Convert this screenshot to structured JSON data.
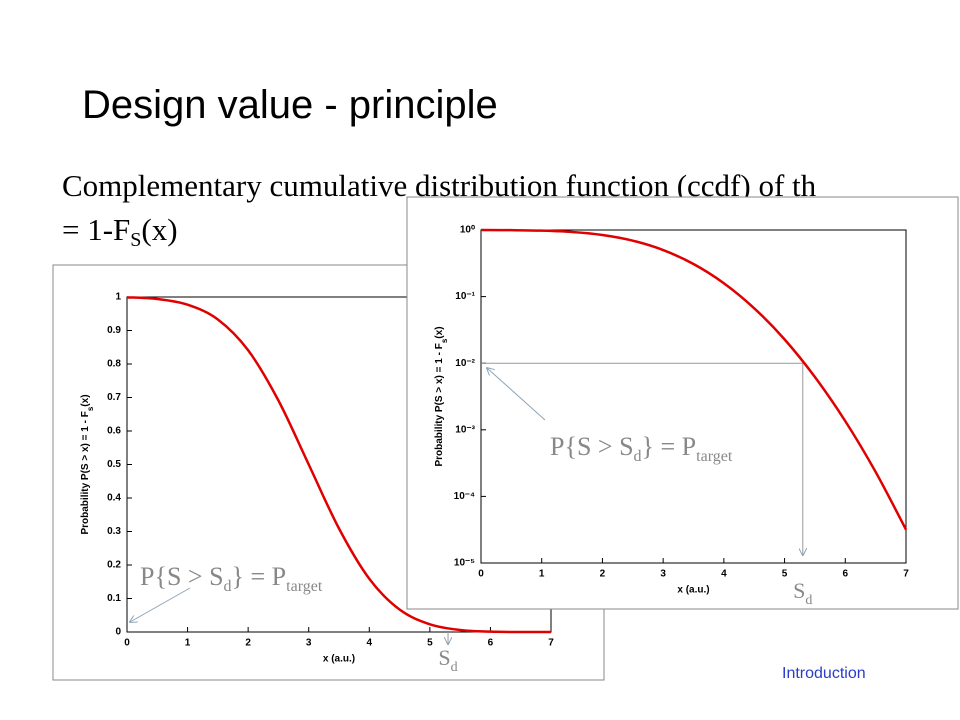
{
  "title": "Design value - principle",
  "body": {
    "line1": "Complementary cumulative distribution function (ccdf) of th",
    "line2": [
      "= 1-F",
      "S",
      "(x)"
    ]
  },
  "footer": "Introduction",
  "chart_data": [
    {
      "type": "line",
      "x": [
        0,
        0.5,
        1,
        1.5,
        2,
        2.5,
        3,
        3.5,
        4,
        4.5,
        5,
        5.5,
        6,
        6.5,
        7
      ],
      "series": [
        {
          "color": "#e00000",
          "values": [
            0.999,
            0.994,
            0.977,
            0.933,
            0.841,
            0.691,
            0.5,
            0.309,
            0.159,
            0.067,
            0.023,
            0.006,
            0.001,
            0,
            0
          ]
        }
      ],
      "xlim": [
        0,
        7
      ],
      "ylim": [
        0,
        1
      ],
      "xticks": [
        0,
        1,
        2,
        3,
        4,
        5,
        6,
        7
      ],
      "yticks": [
        0,
        0.1,
        0.2,
        0.3,
        0.4,
        0.5,
        0.6,
        0.7,
        0.8,
        0.9,
        1
      ],
      "xlabel": "x (a.u.)",
      "ylabel": [
        "Probability P(S > x) = 1 - F",
        "s",
        "(x)"
      ],
      "annotation": [
        "P{S > S",
        "d",
        "} = P",
        "target"
      ],
      "design_label": [
        "S",
        "d"
      ],
      "design_value": 5.3,
      "log_scale": false
    },
    {
      "type": "line",
      "x": [
        0,
        0.5,
        1,
        1.5,
        2,
        2.5,
        3,
        3.5,
        4,
        4.5,
        5,
        5.5,
        6,
        6.5,
        7
      ],
      "series": [
        {
          "color": "#e00000",
          "values": [
            0.9987,
            0.9938,
            0.9773,
            0.9332,
            0.8413,
            0.6915,
            0.5,
            0.3085,
            0.1587,
            0.0668,
            0.0228,
            0.0062,
            0.00135,
            0.000233,
            3.17e-05
          ]
        }
      ],
      "xlim": [
        0,
        7
      ],
      "ylim": [
        1e-05,
        1
      ],
      "xticks": [
        0,
        1,
        2,
        3,
        4,
        5,
        6,
        7
      ],
      "yticks": [
        {
          "value": 1e-05,
          "label": "10⁻⁵"
        },
        {
          "value": 0.0001,
          "label": "10⁻⁴"
        },
        {
          "value": 0.001,
          "label": "10⁻³"
        },
        {
          "value": 0.01,
          "label": "10⁻²"
        },
        {
          "value": 0.1,
          "label": "10⁻¹"
        },
        {
          "value": 1,
          "label": "10⁰"
        }
      ],
      "xlabel": "x (a.u.)",
      "ylabel": [
        "Probability P(S > x) = 1 - F",
        "s",
        "(x)"
      ],
      "annotation": [
        "P{S > S",
        "d",
        "} = P",
        "target"
      ],
      "design_label": [
        "S",
        "d"
      ],
      "design_value": 5.3,
      "target_probability": 0.01,
      "log_scale": true
    }
  ]
}
